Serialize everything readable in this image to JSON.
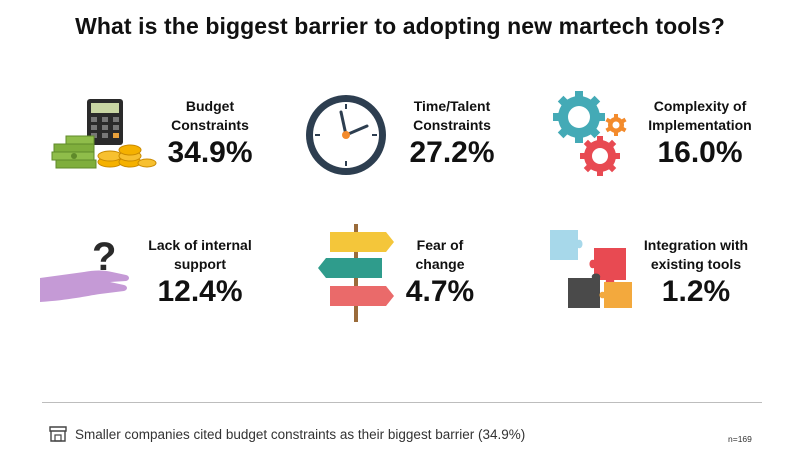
{
  "chart_data": {
    "type": "infographic",
    "title": "What is the biggest barrier to adopting new martech tools?",
    "unit": "%",
    "categories": [
      "Budget Constraints",
      "Time/Talent Constraints",
      "Complexity of Implementation",
      "Lack of internal support",
      "Fear of change",
      "Integration with existing tools"
    ],
    "values": [
      34.9,
      27.2,
      16.0,
      12.4,
      4.7,
      1.2
    ],
    "items": [
      {
        "label_line1": "Budget",
        "label_line2": "Constraints",
        "value": "34.9%",
        "icon": "budget-money-icon"
      },
      {
        "label_line1": "Time/Talent",
        "label_line2": "Constraints",
        "value": "27.2%",
        "icon": "clock-icon"
      },
      {
        "label_line1": "Complexity of",
        "label_line2": "Implementation",
        "value": "16.0%",
        "icon": "gears-icon"
      },
      {
        "label_line1": "Lack of internal",
        "label_line2": "support",
        "value": "12.4%",
        "icon": "hand-question-icon"
      },
      {
        "label_line1": "Fear of",
        "label_line2": "change",
        "value": "4.7%",
        "icon": "signpost-icon"
      },
      {
        "label_line1": "Integration with",
        "label_line2": "existing tools",
        "value": "1.2%",
        "icon": "puzzle-icon"
      }
    ],
    "footnote": "Smaller companies cited budget constraints as their biggest barrier (34.9%)",
    "sample_size": "n=169"
  },
  "colors": {
    "money_green": "#7fae3c",
    "coin_gold": "#f5b100",
    "clock_navy": "#2d3e50",
    "gear_teal": "#44aab6",
    "gear_red": "#e84a52",
    "gear_orange": "#f38b2c",
    "hand_purple": "#c59ad6",
    "sign_yellow": "#f4c63a",
    "sign_teal": "#2f9c8c",
    "sign_coral": "#ea6a6a",
    "puzzle_blue": "#a7d8ea",
    "puzzle_red": "#e84a52",
    "puzzle_orange": "#f3a93d",
    "puzzle_gray": "#4a4a4a"
  }
}
